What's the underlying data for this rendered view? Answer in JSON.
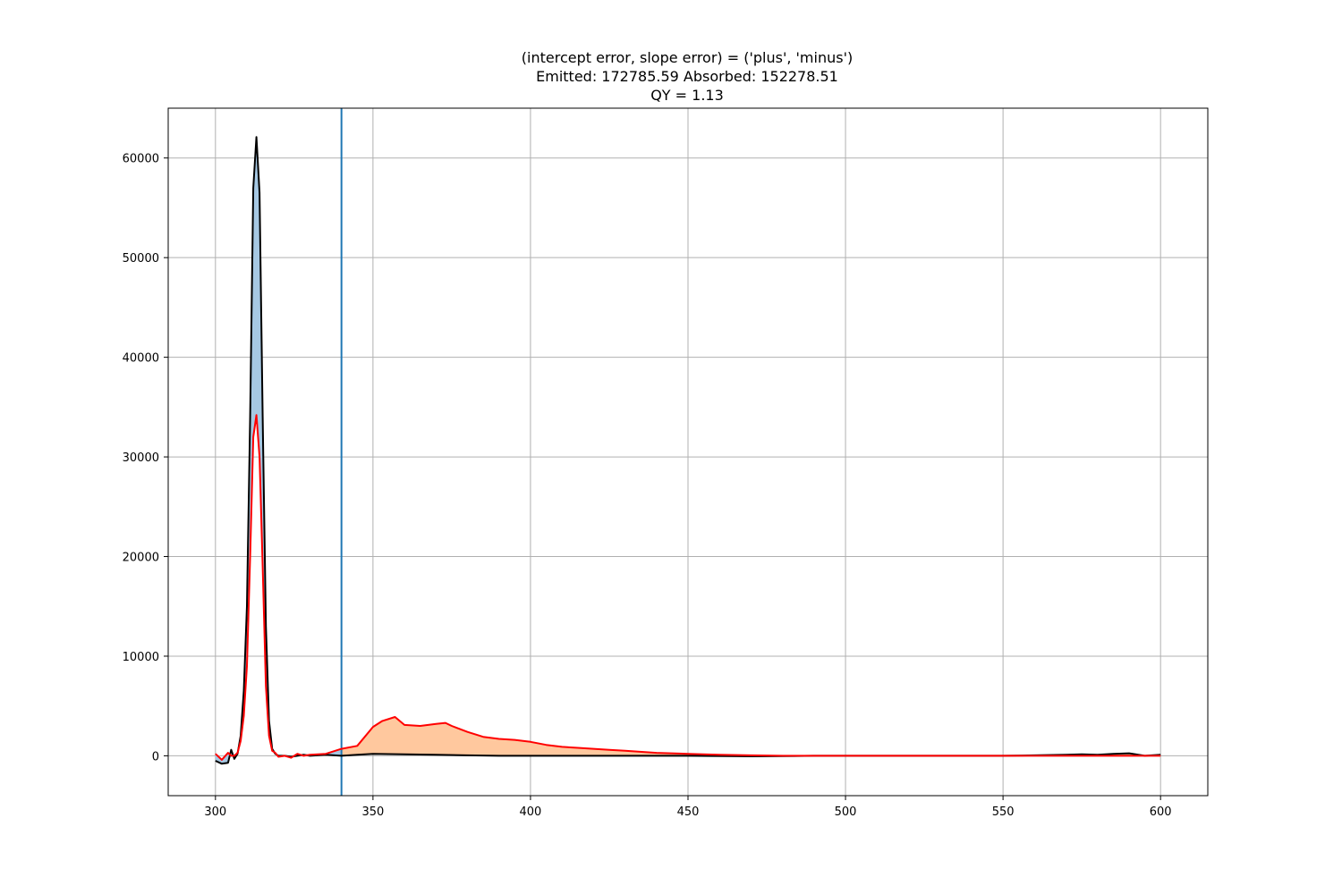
{
  "chart_data": {
    "type": "line",
    "title_lines": [
      "(intercept error, slope error) = ('plus', 'minus')",
      "Emitted: 172785.59   Absorbed: 152278.51",
      "QY = 1.13"
    ],
    "xlabel": "",
    "ylabel": "",
    "xlim": [
      285,
      615
    ],
    "ylim": [
      -4000,
      65000
    ],
    "x_ticks": [
      300,
      350,
      400,
      450,
      500,
      550,
      600
    ],
    "y_ticks": [
      0,
      10000,
      20000,
      30000,
      40000,
      50000,
      60000
    ],
    "grid": true,
    "legend": "none",
    "vertical_line": {
      "x": 340,
      "color": "#1f77b4"
    },
    "colors": {
      "reference": "#000000",
      "sample": "#ff0000",
      "absorbed_fill": "#a6c8e3",
      "emitted_fill": "#ffc89e"
    },
    "absorbed_fill_range": [
      300,
      340
    ],
    "emitted_fill_range": [
      340,
      600
    ],
    "series": [
      {
        "x": [
          300,
          302,
          304,
          305,
          306,
          307,
          308,
          309,
          310,
          311,
          312,
          313,
          314,
          315,
          316,
          317,
          318,
          319,
          320,
          322,
          324,
          326,
          328,
          330,
          335,
          340,
          345,
          350,
          360,
          370,
          380,
          390,
          400,
          410,
          420,
          430,
          440,
          450,
          470,
          490,
          510,
          530,
          550,
          560,
          570,
          575,
          580,
          585,
          590,
          595,
          600
        ],
        "values": [
          -500,
          -800,
          -700,
          600,
          -300,
          200,
          2000,
          6500,
          15000,
          34000,
          57000,
          62100,
          56500,
          34000,
          13000,
          3500,
          700,
          200,
          0,
          0,
          -100,
          0,
          100,
          0,
          100,
          0,
          100,
          200,
          150,
          100,
          50,
          0,
          0,
          0,
          0,
          0,
          0,
          0,
          -50,
          0,
          0,
          0,
          0,
          50,
          100,
          150,
          100,
          200,
          250,
          0,
          100
        ]
      },
      {
        "x": [
          300,
          302,
          304,
          305,
          306,
          307,
          308,
          309,
          310,
          311,
          312,
          313,
          314,
          315,
          316,
          317,
          318,
          319,
          320,
          322,
          324,
          326,
          328,
          330,
          335,
          340,
          345,
          350,
          353,
          357,
          360,
          365,
          370,
          373,
          375,
          380,
          385,
          390,
          395,
          400,
          405,
          410,
          415,
          420,
          425,
          430,
          440,
          450,
          460,
          470,
          480,
          490,
          500,
          520,
          540,
          560,
          580,
          590,
          600
        ],
        "values": [
          200,
          -400,
          300,
          0,
          0,
          300,
          1500,
          4000,
          9000,
          20000,
          32000,
          34200,
          30000,
          19000,
          7000,
          2000,
          500,
          300,
          -100,
          0,
          -200,
          200,
          0,
          100,
          200,
          700,
          1000,
          2900,
          3500,
          3900,
          3100,
          3000,
          3200,
          3300,
          3000,
          2400,
          1900,
          1700,
          1600,
          1400,
          1100,
          900,
          800,
          700,
          600,
          500,
          300,
          200,
          100,
          50,
          0,
          0,
          0,
          0,
          0,
          0,
          0,
          0,
          0
        ]
      }
    ]
  }
}
